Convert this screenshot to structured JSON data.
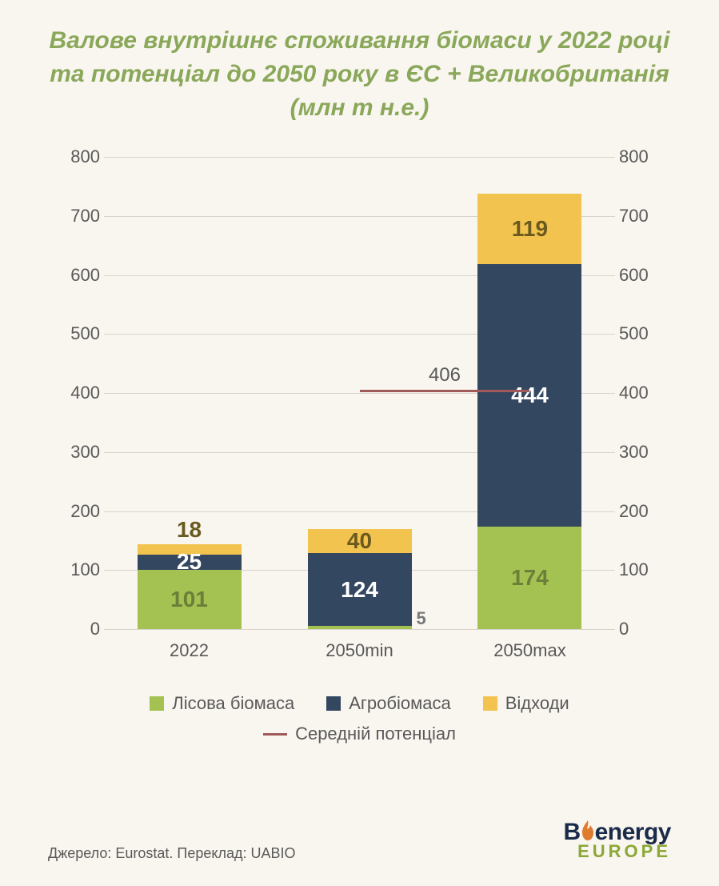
{
  "title": {
    "text": "Валове внутрішнє споживання біомаси у 2022 році та потенціал до 2050 року в ЄС + Великобританія (млн т н.е.)",
    "fontsize": 30,
    "color": "#8aa85a"
  },
  "chart": {
    "type": "stacked-bar-with-line",
    "background": "#f9f5ef",
    "ylim": [
      0,
      800
    ],
    "ytick_step": 100,
    "grid_color": "#d8d4cd",
    "categories": [
      "2022",
      "2050min",
      "2050max"
    ],
    "series": {
      "forest": {
        "label": "Лісова біомаса",
        "color": "#a4c251",
        "values": [
          101,
          5,
          174
        ]
      },
      "agro": {
        "label": "Агробіомаса",
        "color": "#344760",
        "values": [
          25,
          124,
          444
        ]
      },
      "waste": {
        "label": "Відходи",
        "color": "#f2c34e",
        "values": [
          18,
          40,
          119
        ]
      }
    },
    "avg_line": {
      "label": "Середній потенціал",
      "value": 406,
      "color": "#a05a5a",
      "span_from": 1,
      "span_to": 2
    },
    "bar_width_pct": 19,
    "data_label_colors": {
      "on_green": "#6b7e3a",
      "on_dark": "#ffffff",
      "on_yellow": "#6b5a1f",
      "small": "#787878"
    },
    "x_positions_pct": [
      16.67,
      50,
      83.33
    ]
  },
  "legend": {
    "items": [
      {
        "key": "forest",
        "label": "Лісова біомаса",
        "color": "#a4c251",
        "type": "box"
      },
      {
        "key": "agro",
        "label": "Агробіомаса",
        "color": "#344760",
        "type": "box"
      },
      {
        "key": "waste",
        "label": "Відходи",
        "color": "#f2c34e",
        "type": "box"
      },
      {
        "key": "avg",
        "label": "Середній потенціал",
        "color": "#a05a5a",
        "type": "line"
      }
    ]
  },
  "source": "Джерело: Eurostat. Переклад: UABIO",
  "logo": {
    "top": "Bioenergy",
    "bottom": "EUROPE"
  }
}
